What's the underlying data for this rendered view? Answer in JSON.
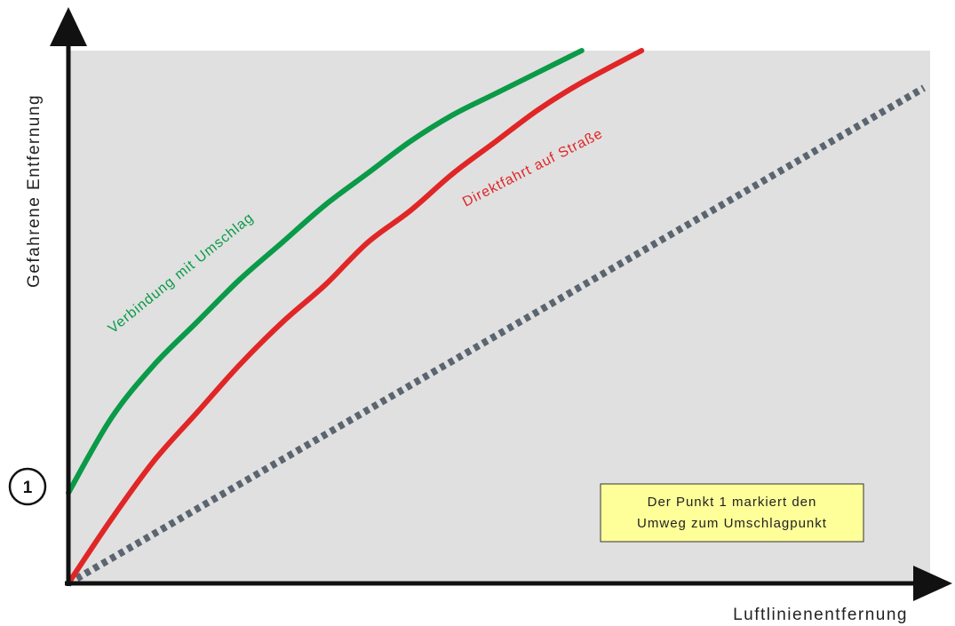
{
  "chart_data": {
    "type": "line",
    "xlabel": "Luftlinienentfernung",
    "ylabel": "Gefahrene Entfernung",
    "grid": false,
    "series": [
      {
        "name": "Verbindung mit Umschlag",
        "color": "#0a9a48",
        "style": "solid",
        "x": [
          0.0,
          0.05,
          0.1,
          0.15,
          0.2,
          0.25,
          0.3,
          0.35,
          0.4,
          0.45,
          0.5,
          0.55,
          0.6
        ],
        "y": [
          0.17,
          0.31,
          0.41,
          0.49,
          0.57,
          0.64,
          0.71,
          0.77,
          0.83,
          0.88,
          0.92,
          0.96,
          1.0
        ]
      },
      {
        "name": "Direktfahrt auf Straße",
        "color": "#e02626",
        "style": "solid",
        "x": [
          0.0,
          0.05,
          0.1,
          0.15,
          0.2,
          0.25,
          0.3,
          0.35,
          0.4,
          0.45,
          0.5,
          0.55,
          0.6,
          0.67
        ],
        "y": [
          0.0,
          0.12,
          0.23,
          0.32,
          0.41,
          0.49,
          0.56,
          0.64,
          0.7,
          0.77,
          0.83,
          0.89,
          0.94,
          1.0
        ]
      },
      {
        "name": "",
        "color": "#5a6570",
        "style": "dotted",
        "x": [
          0.0,
          1.0
        ],
        "y": [
          0.0,
          0.93
        ]
      }
    ],
    "marker": {
      "label": "1",
      "x": 0.0,
      "y": 0.17
    },
    "annotation": {
      "line1": "Der Punkt 1 markiert den",
      "line2": "Umweg zum Umschlagpunkt",
      "background": "#ffff99"
    },
    "plot_background": "#e0e0e0"
  }
}
